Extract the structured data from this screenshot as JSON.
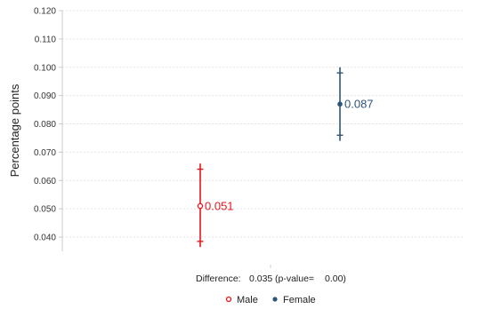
{
  "chart_data": {
    "type": "scatter",
    "title": "",
    "xlabel": "",
    "ylabel": "Percentage points",
    "ylim": [
      0.035,
      0.12
    ],
    "yticks": [
      "0.040",
      "0.050",
      "0.060",
      "0.070",
      "0.080",
      "0.090",
      "0.100",
      "0.110",
      "0.120"
    ],
    "grid": true,
    "legend_position": "bottom-center",
    "series": [
      {
        "name": "Male",
        "color": "#e8161b",
        "marker": "hollow-circle",
        "value": 0.051,
        "value_label": "0.051",
        "ci_inner": [
          0.0385,
          0.064
        ],
        "ci_outer": [
          0.0365,
          0.066
        ]
      },
      {
        "name": "Female",
        "color": "#2e5577",
        "marker": "filled-circle",
        "value": 0.087,
        "value_label": "0.087",
        "ci_inner": [
          0.076,
          0.098
        ],
        "ci_outer": [
          0.074,
          0.1
        ]
      }
    ],
    "annotation": {
      "difference_label": "Difference:",
      "difference_value": "0.035",
      "pvalue_label": "(p-value=",
      "pvalue_value": "0.00)"
    }
  }
}
